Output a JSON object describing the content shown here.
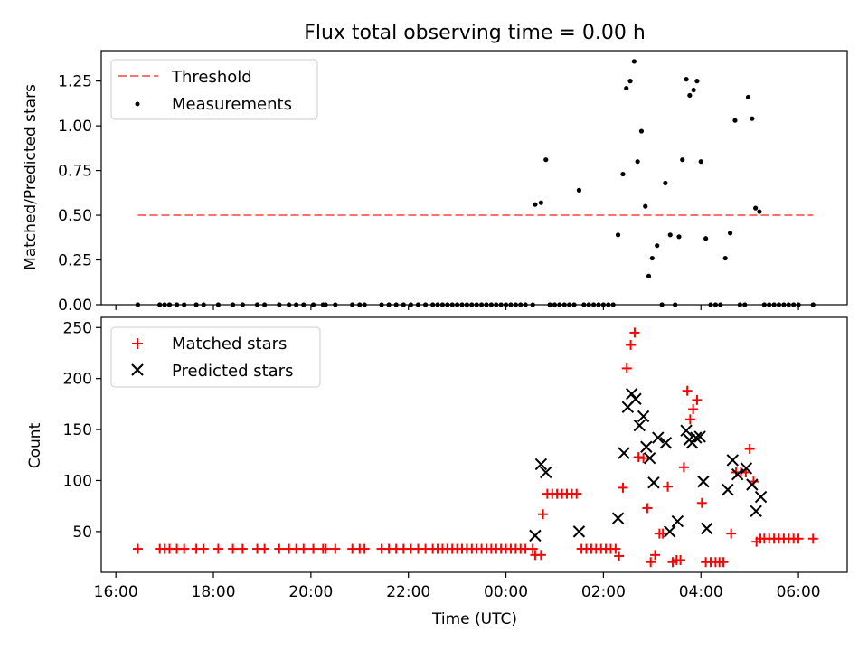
{
  "title": "Flux total observing time = 0.00 h",
  "xlabel": "Time (UTC)",
  "chart_data": [
    {
      "type": "scatter",
      "panel": "top",
      "ylabel": "Matched/Predicted stars",
      "ylim": [
        0,
        1.42
      ],
      "yticks": [
        "0.00",
        "0.25",
        "0.50",
        "0.75",
        "1.00",
        "1.25"
      ],
      "xlim_hours": [
        15.7,
        31.0
      ],
      "legend_position": "upper-left",
      "threshold": {
        "name": "Threshold",
        "value": 0.5,
        "x_from": 16.45,
        "x_to": 30.3,
        "color": "#ff7070"
      },
      "measurements": {
        "name": "Measurements",
        "color": "#000000",
        "points": [
          [
            16.45,
            0
          ],
          [
            16.9,
            0
          ],
          [
            17.0,
            0
          ],
          [
            17.1,
            0
          ],
          [
            17.25,
            0
          ],
          [
            17.4,
            0
          ],
          [
            17.65,
            0
          ],
          [
            17.8,
            0
          ],
          [
            18.1,
            0
          ],
          [
            18.4,
            0
          ],
          [
            18.6,
            0
          ],
          [
            18.9,
            0
          ],
          [
            19.05,
            0
          ],
          [
            19.35,
            0
          ],
          [
            19.55,
            0
          ],
          [
            19.7,
            0
          ],
          [
            19.85,
            0
          ],
          [
            20.05,
            0
          ],
          [
            20.25,
            0
          ],
          [
            20.3,
            0
          ],
          [
            20.5,
            0
          ],
          [
            20.85,
            0
          ],
          [
            21.0,
            0
          ],
          [
            21.1,
            0
          ],
          [
            21.45,
            0
          ],
          [
            21.6,
            0
          ],
          [
            21.75,
            0
          ],
          [
            21.9,
            0
          ],
          [
            22.05,
            0
          ],
          [
            22.2,
            0
          ],
          [
            22.35,
            0
          ],
          [
            22.5,
            0
          ],
          [
            22.6,
            0
          ],
          [
            22.7,
            0
          ],
          [
            22.8,
            0
          ],
          [
            22.9,
            0
          ],
          [
            23.0,
            0
          ],
          [
            23.1,
            0
          ],
          [
            23.2,
            0
          ],
          [
            23.3,
            0
          ],
          [
            23.4,
            0
          ],
          [
            23.5,
            0
          ],
          [
            23.6,
            0
          ],
          [
            23.7,
            0
          ],
          [
            23.8,
            0
          ],
          [
            23.9,
            0
          ],
          [
            24.0,
            0
          ],
          [
            24.1,
            0
          ],
          [
            24.2,
            0
          ],
          [
            24.3,
            0
          ],
          [
            24.4,
            0
          ],
          [
            24.55,
            0
          ],
          [
            24.6,
            0.56
          ],
          [
            24.72,
            0.57
          ],
          [
            24.82,
            0.81
          ],
          [
            24.9,
            0
          ],
          [
            25.0,
            0
          ],
          [
            25.1,
            0
          ],
          [
            25.2,
            0
          ],
          [
            25.3,
            0
          ],
          [
            25.4,
            0
          ],
          [
            25.5,
            0.64
          ],
          [
            25.6,
            0
          ],
          [
            25.7,
            0
          ],
          [
            25.8,
            0
          ],
          [
            25.9,
            0
          ],
          [
            26.0,
            0
          ],
          [
            26.1,
            0
          ],
          [
            26.2,
            0
          ],
          [
            26.3,
            0.39
          ],
          [
            26.4,
            0.73
          ],
          [
            26.47,
            1.21
          ],
          [
            26.55,
            1.25
          ],
          [
            26.63,
            1.36
          ],
          [
            26.7,
            0.8
          ],
          [
            26.78,
            0.97
          ],
          [
            26.86,
            0.55
          ],
          [
            26.93,
            0.16
          ],
          [
            27.0,
            0.26
          ],
          [
            27.1,
            0.33
          ],
          [
            27.2,
            0
          ],
          [
            27.27,
            0.68
          ],
          [
            27.37,
            0.39
          ],
          [
            27.47,
            0
          ],
          [
            27.55,
            0.38
          ],
          [
            27.62,
            0.81
          ],
          [
            27.7,
            1.26
          ],
          [
            27.77,
            1.17
          ],
          [
            27.85,
            1.2
          ],
          [
            27.92,
            1.25
          ],
          [
            28.0,
            0.8
          ],
          [
            28.1,
            0.37
          ],
          [
            28.2,
            0
          ],
          [
            28.3,
            0
          ],
          [
            28.4,
            0
          ],
          [
            28.5,
            0.26
          ],
          [
            28.6,
            0.4
          ],
          [
            28.7,
            1.03
          ],
          [
            28.8,
            0
          ],
          [
            28.9,
            0
          ],
          [
            28.97,
            1.16
          ],
          [
            29.05,
            1.04
          ],
          [
            29.12,
            0.54
          ],
          [
            29.2,
            0.52
          ],
          [
            29.3,
            0
          ],
          [
            29.4,
            0
          ],
          [
            29.5,
            0
          ],
          [
            29.6,
            0
          ],
          [
            29.7,
            0
          ],
          [
            29.8,
            0
          ],
          [
            29.9,
            0
          ],
          [
            30.0,
            0
          ],
          [
            30.3,
            0
          ]
        ]
      }
    },
    {
      "type": "scatter",
      "panel": "bottom",
      "ylabel": "Count",
      "ylim": [
        10,
        260
      ],
      "yticks": [
        "50",
        "100",
        "150",
        "200",
        "250"
      ],
      "xlim_hours": [
        15.7,
        31.0
      ],
      "xticks": [
        "16:00",
        "18:00",
        "20:00",
        "22:00",
        "00:00",
        "02:00",
        "04:00",
        "06:00"
      ],
      "legend_position": "upper-left",
      "series": [
        {
          "name": "Matched stars",
          "marker": "plus",
          "color": "#ff0000",
          "points": [
            [
              16.45,
              33
            ],
            [
              16.9,
              33
            ],
            [
              17.0,
              33
            ],
            [
              17.1,
              33
            ],
            [
              17.25,
              33
            ],
            [
              17.4,
              33
            ],
            [
              17.65,
              33
            ],
            [
              17.8,
              33
            ],
            [
              18.1,
              33
            ],
            [
              18.4,
              33
            ],
            [
              18.6,
              33
            ],
            [
              18.9,
              33
            ],
            [
              19.05,
              33
            ],
            [
              19.35,
              33
            ],
            [
              19.55,
              33
            ],
            [
              19.7,
              33
            ],
            [
              19.85,
              33
            ],
            [
              20.05,
              33
            ],
            [
              20.25,
              33
            ],
            [
              20.3,
              33
            ],
            [
              20.5,
              33
            ],
            [
              20.85,
              33
            ],
            [
              21.0,
              33
            ],
            [
              21.1,
              33
            ],
            [
              21.45,
              33
            ],
            [
              21.6,
              33
            ],
            [
              21.75,
              33
            ],
            [
              21.9,
              33
            ],
            [
              22.05,
              33
            ],
            [
              22.2,
              33
            ],
            [
              22.35,
              33
            ],
            [
              22.5,
              33
            ],
            [
              22.6,
              33
            ],
            [
              22.7,
              33
            ],
            [
              22.8,
              33
            ],
            [
              22.9,
              33
            ],
            [
              23.0,
              33
            ],
            [
              23.1,
              33
            ],
            [
              23.2,
              33
            ],
            [
              23.3,
              33
            ],
            [
              23.4,
              33
            ],
            [
              23.5,
              33
            ],
            [
              23.6,
              33
            ],
            [
              23.7,
              33
            ],
            [
              23.8,
              33
            ],
            [
              23.9,
              33
            ],
            [
              24.0,
              33
            ],
            [
              24.1,
              33
            ],
            [
              24.2,
              33
            ],
            [
              24.3,
              33
            ],
            [
              24.4,
              33
            ],
            [
              24.55,
              33
            ],
            [
              24.6,
              27
            ],
            [
              24.72,
              27
            ],
            [
              24.76,
              67
            ],
            [
              24.85,
              87
            ],
            [
              24.95,
              87
            ],
            [
              25.05,
              87
            ],
            [
              25.15,
              87
            ],
            [
              25.25,
              87
            ],
            [
              25.35,
              87
            ],
            [
              25.45,
              87
            ],
            [
              25.55,
              33
            ],
            [
              25.65,
              33
            ],
            [
              25.75,
              33
            ],
            [
              25.85,
              33
            ],
            [
              25.95,
              33
            ],
            [
              26.05,
              33
            ],
            [
              26.15,
              33
            ],
            [
              26.25,
              33
            ],
            [
              26.32,
              26
            ],
            [
              26.4,
              93
            ],
            [
              26.48,
              210
            ],
            [
              26.56,
              233
            ],
            [
              26.64,
              245
            ],
            [
              26.72,
              123
            ],
            [
              26.82,
              122
            ],
            [
              26.9,
              73
            ],
            [
              26.97,
              20
            ],
            [
              27.06,
              27
            ],
            [
              27.15,
              48
            ],
            [
              27.22,
              48
            ],
            [
              27.32,
              94
            ],
            [
              27.42,
              20
            ],
            [
              27.5,
              22
            ],
            [
              27.58,
              22
            ],
            [
              27.65,
              113
            ],
            [
              27.72,
              188
            ],
            [
              27.78,
              160
            ],
            [
              27.84,
              170
            ],
            [
              27.92,
              179
            ],
            [
              28.02,
              78
            ],
            [
              28.1,
              20
            ],
            [
              28.2,
              20
            ],
            [
              28.3,
              20
            ],
            [
              28.38,
              20
            ],
            [
              28.46,
              20
            ],
            [
              28.62,
              48
            ],
            [
              28.72,
              108
            ],
            [
              28.82,
              108
            ],
            [
              28.92,
              108
            ],
            [
              29.0,
              131
            ],
            [
              29.08,
              99
            ],
            [
              29.14,
              40
            ],
            [
              29.22,
              43
            ],
            [
              29.3,
              43
            ],
            [
              29.4,
              43
            ],
            [
              29.5,
              43
            ],
            [
              29.6,
              43
            ],
            [
              29.7,
              43
            ],
            [
              29.8,
              43
            ],
            [
              29.9,
              43
            ],
            [
              30.0,
              43
            ],
            [
              30.3,
              43
            ]
          ]
        },
        {
          "name": "Predicted stars",
          "marker": "x",
          "color": "#000000",
          "points": [
            [
              24.6,
              46
            ],
            [
              24.72,
              116
            ],
            [
              24.82,
              108
            ],
            [
              25.5,
              50
            ],
            [
              26.3,
              63
            ],
            [
              26.42,
              127
            ],
            [
              26.5,
              172
            ],
            [
              26.58,
              185
            ],
            [
              26.66,
              180
            ],
            [
              26.74,
              154
            ],
            [
              26.82,
              163
            ],
            [
              26.88,
              133
            ],
            [
              26.95,
              122
            ],
            [
              27.03,
              98
            ],
            [
              27.12,
              142
            ],
            [
              27.28,
              137
            ],
            [
              27.36,
              50
            ],
            [
              27.52,
              60
            ],
            [
              27.7,
              149
            ],
            [
              27.76,
              140
            ],
            [
              27.82,
              137
            ],
            [
              27.9,
              142
            ],
            [
              27.98,
              143
            ],
            [
              28.05,
              99
            ],
            [
              28.12,
              53
            ],
            [
              28.55,
              91
            ],
            [
              28.65,
              120
            ],
            [
              28.75,
              106
            ],
            [
              28.93,
              112
            ],
            [
              29.05,
              96
            ],
            [
              29.13,
              70
            ],
            [
              29.23,
              84
            ]
          ]
        }
      ]
    }
  ]
}
